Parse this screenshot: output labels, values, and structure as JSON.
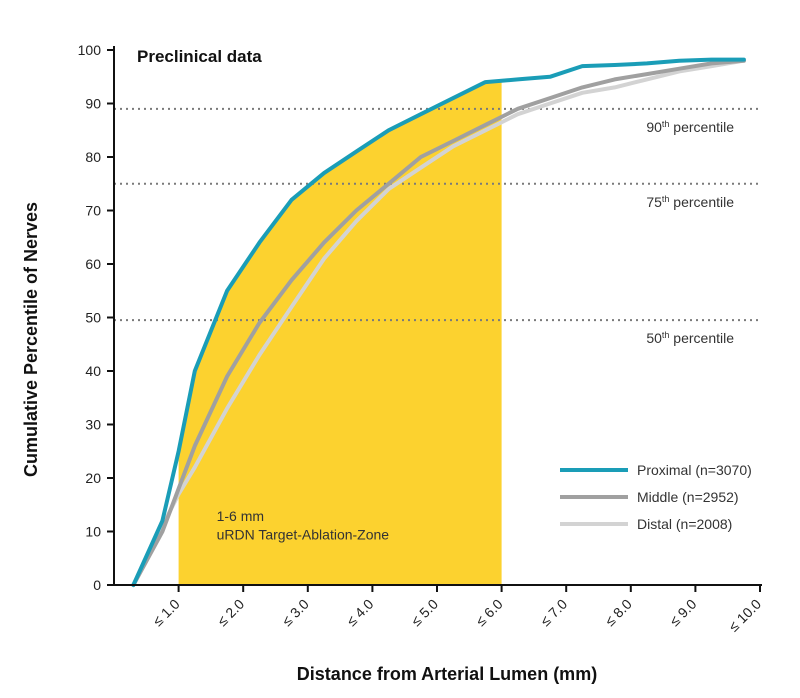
{
  "chart_data": {
    "type": "line",
    "title": "Preclinical data",
    "xlabel": "Distance from Arterial Lumen (mm)",
    "ylabel": "Cumulative Percentile of Nerves",
    "xlim": [
      0,
      10
    ],
    "ylim": [
      0,
      100
    ],
    "x_ticks": [
      1,
      2,
      3,
      4,
      5,
      6,
      7,
      8,
      9,
      10
    ],
    "x_tick_labels": [
      "≤ 1.0",
      "≤ 2.0",
      "≤ 3.0",
      "≤ 4.0",
      "≤ 5.0",
      "≤ 6.0",
      "≤ 7.0",
      "≤ 8.0",
      "≤ 9.0",
      "≤ 10.0"
    ],
    "y_ticks": [
      0,
      10,
      20,
      30,
      40,
      50,
      60,
      70,
      80,
      90,
      100
    ],
    "y_tick_labels": [
      "0",
      "10",
      "20",
      "30",
      "40",
      "50",
      "60",
      "70",
      "80",
      "90",
      "100"
    ],
    "zone": {
      "x_start": 1.0,
      "x_end": 6.0,
      "color": "#FCD22F",
      "label_line1": "1-6 mm",
      "label_line2": "uRDN Target-Ablation-Zone"
    },
    "reference_lines": [
      {
        "y": 89,
        "label": "90",
        "sup": "th",
        "suffix": " percentile"
      },
      {
        "y": 75,
        "label": "75",
        "sup": "th",
        "suffix": " percentile"
      },
      {
        "y": 49.5,
        "label": "50",
        "sup": "th",
        "suffix": " percentile"
      }
    ],
    "series": [
      {
        "name": "Distal (n=2008)",
        "color": "#D3D3D3",
        "x": [
          0.3,
          0.75,
          1.0,
          1.25,
          1.75,
          2.25,
          2.75,
          3.25,
          3.75,
          4.25,
          4.75,
          5.25,
          5.75,
          6.25,
          6.75,
          7.25,
          7.75,
          8.25,
          8.75,
          9.25,
          9.75
        ],
        "values": [
          0,
          11,
          17,
          22,
          33,
          43,
          52,
          61,
          68,
          74,
          78,
          82,
          85,
          88,
          90,
          92,
          93,
          94.5,
          96,
          97,
          98
        ]
      },
      {
        "name": "Middle (n=2952)",
        "color": "#A0A0A0",
        "x": [
          0.3,
          0.75,
          1.0,
          1.25,
          1.75,
          2.25,
          2.75,
          3.25,
          3.75,
          4.25,
          4.75,
          5.25,
          5.75,
          6.25,
          6.75,
          7.25,
          7.75,
          8.25,
          8.75,
          9.25,
          9.75
        ],
        "values": [
          0,
          10,
          18,
          26,
          39,
          49,
          57,
          64,
          70,
          75,
          80,
          83,
          86,
          89,
          91,
          93,
          94.5,
          95.5,
          96.5,
          97.5,
          98
        ]
      },
      {
        "name": "Proximal (n=3070)",
        "color": "#1A9DB7",
        "x": [
          0.3,
          0.75,
          1.0,
          1.25,
          1.75,
          2.25,
          2.75,
          3.25,
          3.75,
          4.25,
          4.75,
          5.25,
          5.75,
          6.25,
          6.75,
          7.25,
          7.75,
          8.25,
          8.75,
          9.25,
          9.75
        ],
        "values": [
          0,
          12,
          25,
          40,
          55,
          64,
          72,
          77,
          81,
          85,
          88,
          91,
          94,
          94.5,
          95,
          97,
          97.2,
          97.5,
          98,
          98.2,
          98.2
        ]
      }
    ],
    "legend": {
      "placement": "bottom-right",
      "order": [
        "Proximal (n=3070)",
        "Middle (n=2952)",
        "Distal (n=2008)"
      ]
    }
  }
}
